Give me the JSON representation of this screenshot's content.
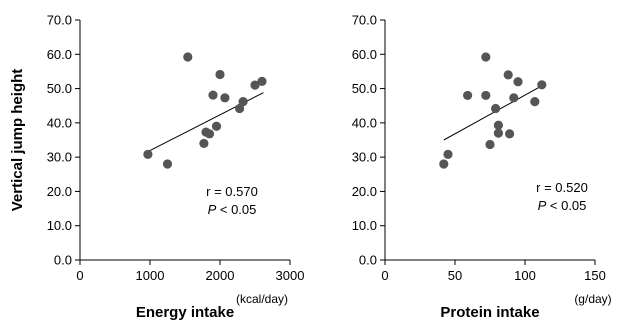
{
  "chart_data": [
    {
      "type": "scatter",
      "xlabel": "Energy intake",
      "xunit": "(kcal/day)",
      "ylabel": "Vertical jump height",
      "xlim": [
        0,
        3000
      ],
      "ylim": [
        0,
        70
      ],
      "xticks": [
        0,
        1000,
        2000,
        3000
      ],
      "xtick_labels": [
        "0",
        "1000",
        "2000",
        "3000"
      ],
      "yticks": [
        0,
        10,
        20,
        30,
        40,
        50,
        60,
        70
      ],
      "ytick_labels": [
        "0.0",
        "10.0",
        "20.0",
        "30.0",
        "40.0",
        "50.0",
        "60.0",
        "70.0"
      ],
      "grid": false,
      "point_color": "#555555",
      "points": [
        {
          "x": 970,
          "y": 30.8
        },
        {
          "x": 1250,
          "y": 28.0
        },
        {
          "x": 1540,
          "y": 59.2
        },
        {
          "x": 1770,
          "y": 34.0
        },
        {
          "x": 1800,
          "y": 37.3
        },
        {
          "x": 1850,
          "y": 36.8
        },
        {
          "x": 1900,
          "y": 48.1
        },
        {
          "x": 1950,
          "y": 39.0
        },
        {
          "x": 2000,
          "y": 54.1
        },
        {
          "x": 2070,
          "y": 47.3
        },
        {
          "x": 2280,
          "y": 44.2
        },
        {
          "x": 2330,
          "y": 46.2
        },
        {
          "x": 2500,
          "y": 51.0
        },
        {
          "x": 2600,
          "y": 52.1
        }
      ],
      "trendline": {
        "x": [
          950,
          2620
        ],
        "y": [
          31.4,
          48.8
        ]
      },
      "annotation": {
        "r_text": "r = 0.570",
        "p_symbol": "P",
        "p_text": " < 0.05"
      }
    },
    {
      "type": "scatter",
      "xlabel": "Protein intake",
      "xunit": "(g/day)",
      "ylabel": "",
      "xlim": [
        0,
        150
      ],
      "ylim": [
        0,
        70
      ],
      "xticks": [
        0,
        50,
        100,
        150
      ],
      "xtick_labels": [
        "0",
        "50",
        "100",
        "150"
      ],
      "yticks": [
        0,
        10,
        20,
        30,
        40,
        50,
        60,
        70
      ],
      "ytick_labels": [
        "0.0",
        "10.0",
        "20.0",
        "30.0",
        "40.0",
        "50.0",
        "60.0",
        "70.0"
      ],
      "grid": false,
      "point_color": "#555555",
      "points": [
        {
          "x": 42,
          "y": 28.0
        },
        {
          "x": 45,
          "y": 30.8
        },
        {
          "x": 59,
          "y": 48.0
        },
        {
          "x": 72,
          "y": 59.2
        },
        {
          "x": 72,
          "y": 48.0
        },
        {
          "x": 75,
          "y": 33.7
        },
        {
          "x": 79,
          "y": 44.2
        },
        {
          "x": 81,
          "y": 37.0
        },
        {
          "x": 81,
          "y": 39.3
        },
        {
          "x": 88,
          "y": 54.0
        },
        {
          "x": 89,
          "y": 36.8
        },
        {
          "x": 92,
          "y": 47.3
        },
        {
          "x": 95,
          "y": 52.0
        },
        {
          "x": 107,
          "y": 46.2
        },
        {
          "x": 112,
          "y": 51.1
        }
      ],
      "trendline": {
        "x": [
          42,
          112
        ],
        "y": [
          35.0,
          50.8
        ]
      },
      "annotation": {
        "r_text": "r = 0.520",
        "p_symbol": "P",
        "p_text": " < 0.05"
      }
    }
  ]
}
